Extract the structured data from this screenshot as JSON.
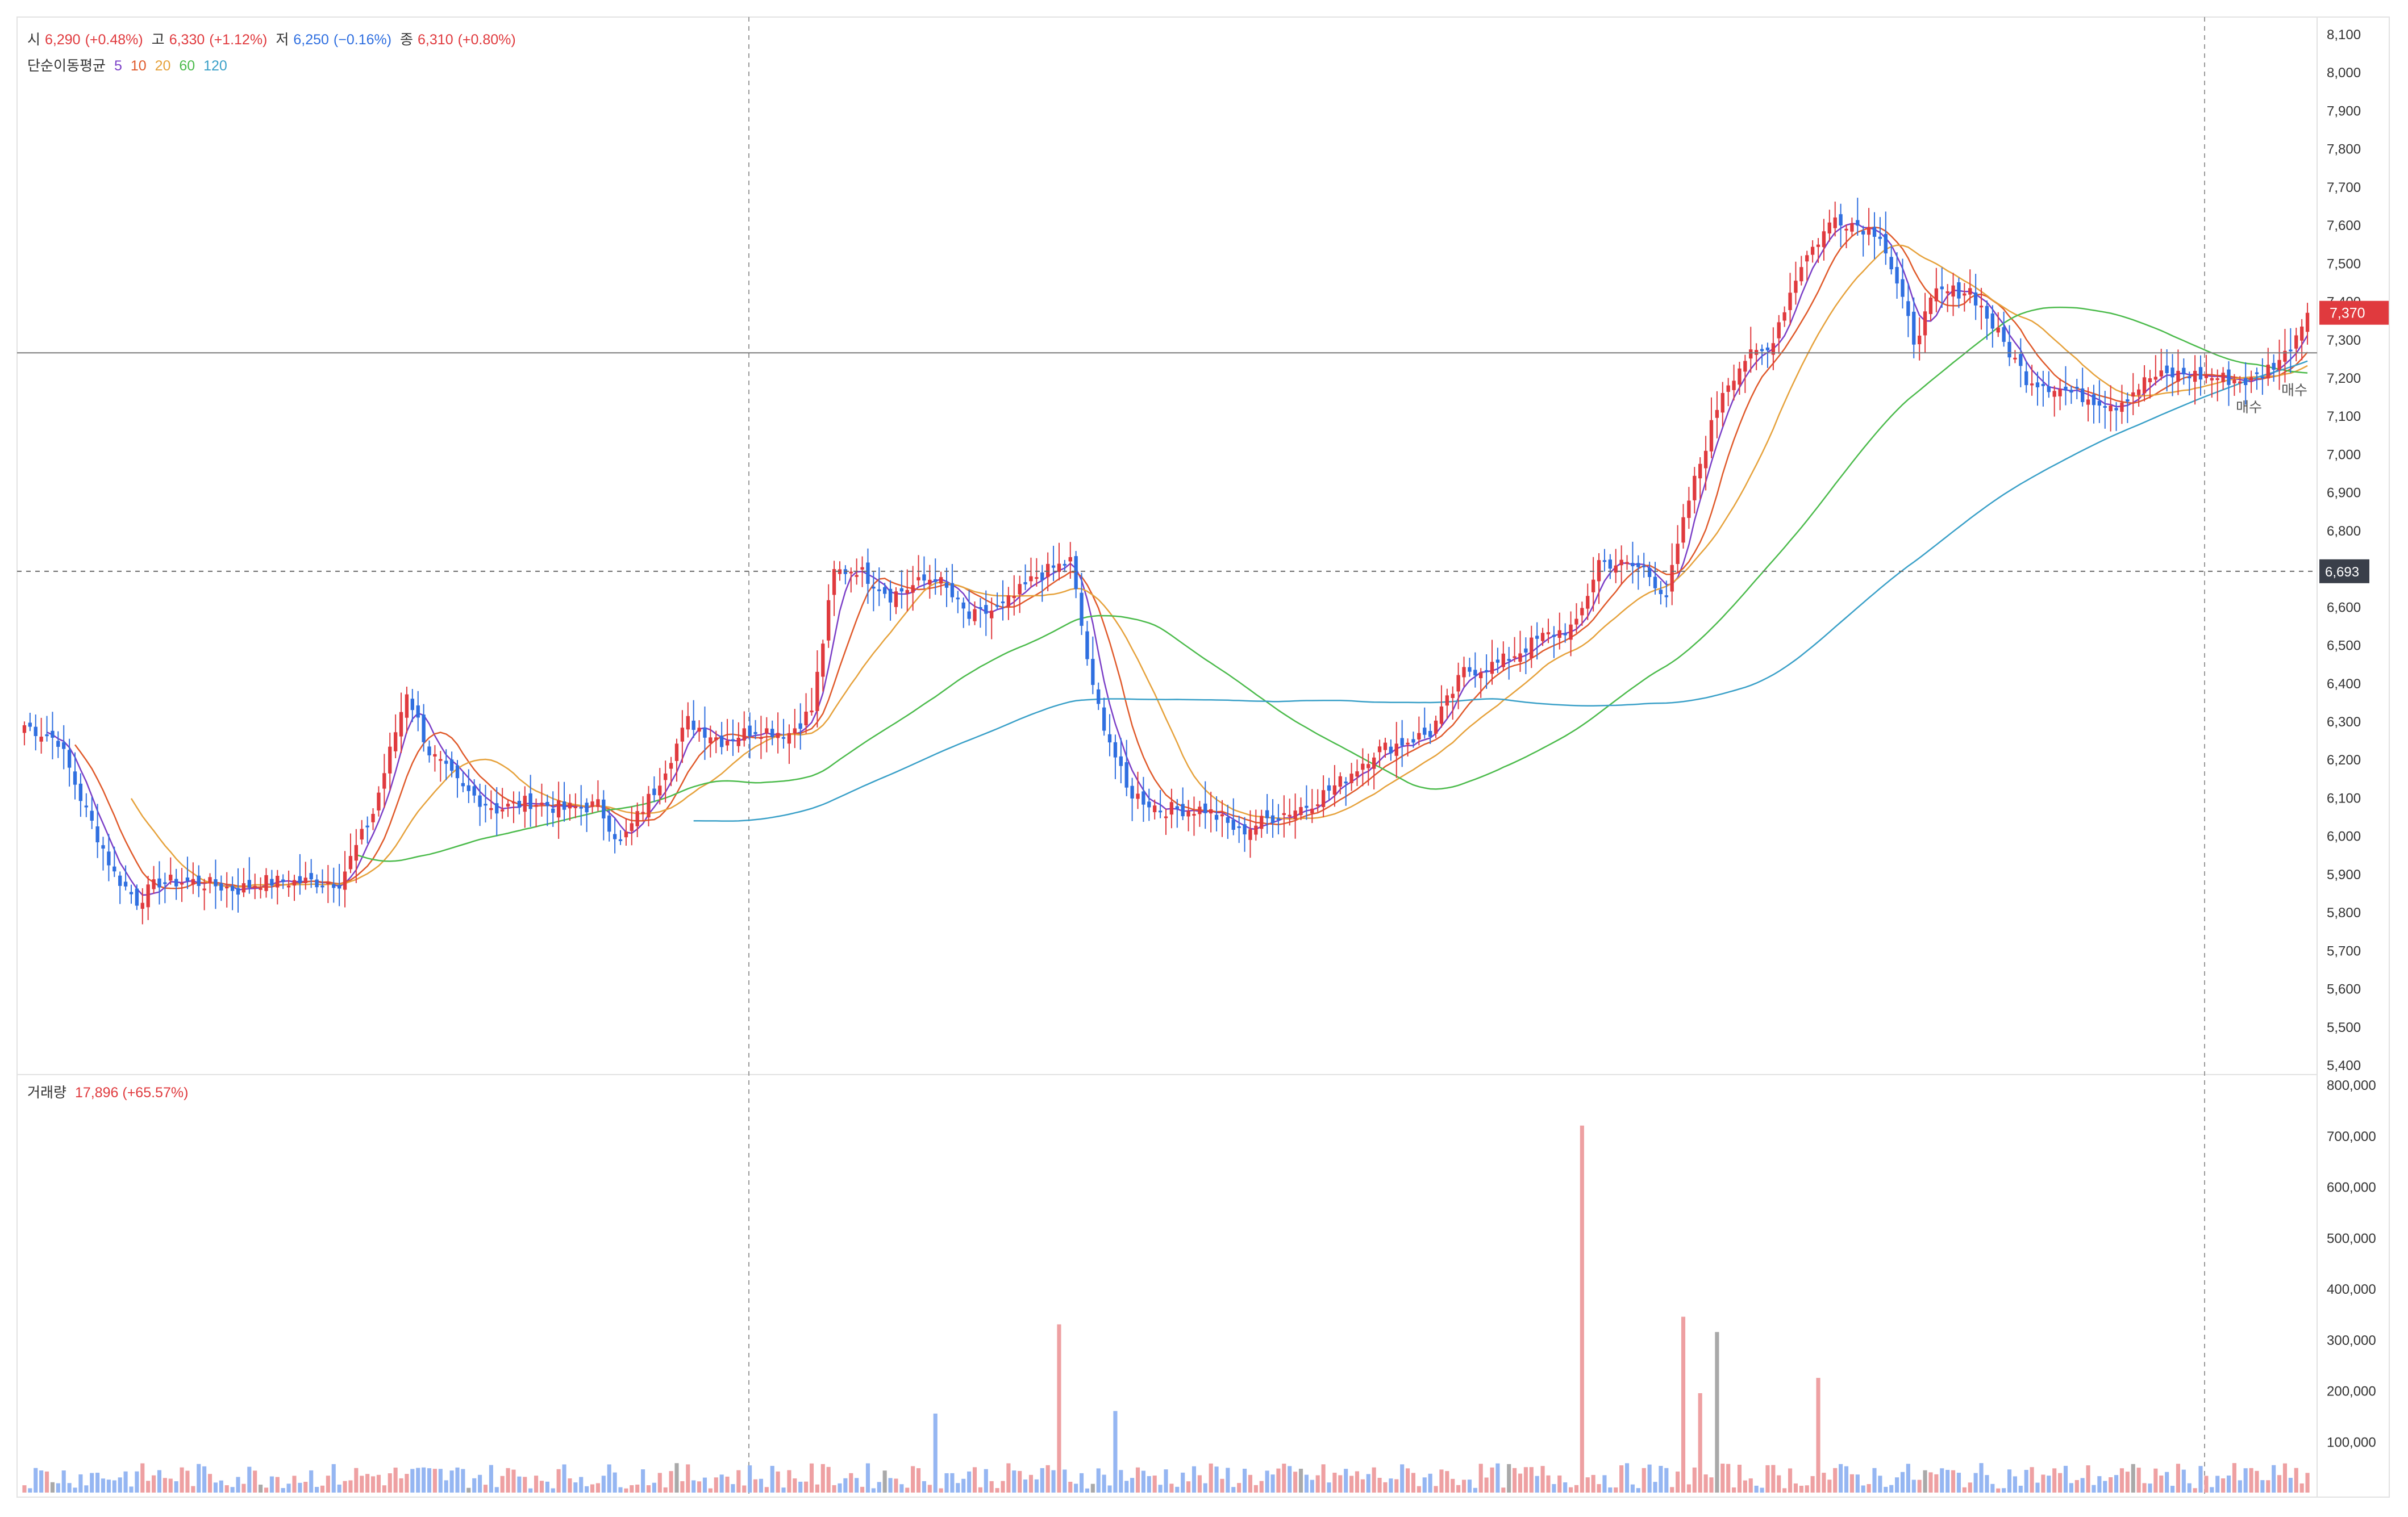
{
  "ohlc_legend": {
    "open_label": "시",
    "open_value": "6,290",
    "open_change": "(+0.48%)",
    "high_label": "고",
    "high_value": "6,330",
    "high_change": "(+1.12%)",
    "low_label": "저",
    "low_value": "6,250",
    "low_change": "(−0.16%)",
    "close_label": "종",
    "close_value": "6,310",
    "close_change": "(+0.80%)"
  },
  "ma_legend": {
    "label": "단순이동평균",
    "periods": [
      {
        "text": "5",
        "color": "#7b3fc7"
      },
      {
        "text": "10",
        "color": "#e05a2b"
      },
      {
        "text": "20",
        "color": "#e6a23c"
      },
      {
        "text": "60",
        "color": "#4cbb4c"
      },
      {
        "text": "120",
        "color": "#3aa0c8"
      }
    ]
  },
  "volume_legend": {
    "label": "거래량",
    "value": "17,896 (+65.57%)"
  },
  "colors": {
    "up": "#e03a3e",
    "down": "#2f6fe0",
    "up_volume": "#eea0a2",
    "down_volume": "#95b6f2",
    "flat_volume": "#a9a9a9",
    "price_tag": "#e03a3e",
    "crosshair_tag": "#3a3f4a"
  },
  "price_tag": "7,370",
  "crosshair_tag": "6,693",
  "markers": [
    {
      "text": "매수"
    },
    {
      "text": "매수"
    }
  ],
  "chart_data": [
    {
      "type": "candlestick",
      "title": "",
      "ylim": [
        5400,
        8100
      ],
      "yticks": [
        "5,400",
        "5,500",
        "5,600",
        "5,700",
        "5,800",
        "5,900",
        "6,000",
        "6,100",
        "6,200",
        "6,300",
        "6,400",
        "6,500",
        "6,600",
        "6,700",
        "6,800",
        "6,900",
        "7,000",
        "7,100",
        "7,200",
        "7,300",
        "7,400",
        "7,500",
        "7,600",
        "7,700",
        "7,800",
        "7,900",
        "8,000",
        "8,100"
      ],
      "close_anchors": [
        [
          0,
          6290
        ],
        [
          6,
          6250
        ],
        [
          10,
          6100
        ],
        [
          16,
          5900
        ],
        [
          20,
          5830
        ],
        [
          24,
          5880
        ],
        [
          30,
          5880
        ],
        [
          38,
          5860
        ],
        [
          42,
          5880
        ],
        [
          50,
          5880
        ],
        [
          56,
          5880
        ],
        [
          62,
          6060
        ],
        [
          68,
          6380
        ],
        [
          72,
          6220
        ],
        [
          78,
          6120
        ],
        [
          84,
          6070
        ],
        [
          90,
          6090
        ],
        [
          96,
          6070
        ],
        [
          102,
          6080
        ],
        [
          106,
          5980
        ],
        [
          112,
          6120
        ],
        [
          118,
          6300
        ],
        [
          124,
          6250
        ],
        [
          130,
          6280
        ],
        [
          136,
          6270
        ],
        [
          140,
          6330
        ],
        [
          144,
          6690
        ],
        [
          148,
          6700
        ],
        [
          154,
          6630
        ],
        [
          162,
          6680
        ],
        [
          168,
          6570
        ],
        [
          174,
          6600
        ],
        [
          180,
          6680
        ],
        [
          186,
          6720
        ],
        [
          190,
          6380
        ],
        [
          196,
          6120
        ],
        [
          202,
          6070
        ],
        [
          210,
          6070
        ],
        [
          216,
          6010
        ],
        [
          222,
          6050
        ],
        [
          228,
          6080
        ],
        [
          234,
          6140
        ],
        [
          240,
          6220
        ],
        [
          250,
          6270
        ],
        [
          256,
          6430
        ],
        [
          262,
          6450
        ],
        [
          270,
          6520
        ],
        [
          276,
          6550
        ],
        [
          280,
          6720
        ],
        [
          288,
          6700
        ],
        [
          292,
          6630
        ],
        [
          296,
          6880
        ],
        [
          302,
          7170
        ],
        [
          306,
          7250
        ],
        [
          310,
          7270
        ],
        [
          316,
          7500
        ],
        [
          322,
          7620
        ],
        [
          330,
          7580
        ],
        [
          336,
          7300
        ],
        [
          340,
          7420
        ],
        [
          346,
          7430
        ],
        [
          352,
          7290
        ],
        [
          356,
          7200
        ],
        [
          364,
          7160
        ],
        [
          372,
          7130
        ],
        [
          378,
          7200
        ],
        [
          384,
          7210
        ],
        [
          390,
          7200
        ],
        [
          396,
          7190
        ],
        [
          402,
          7260
        ],
        [
          406,
          7370
        ]
      ],
      "volume_ylim": [
        0,
        800000
      ],
      "volume_yticks": [
        "100,000",
        "200,000",
        "300,000",
        "400,000",
        "500,000",
        "600,000",
        "700,000",
        "800,000"
      ],
      "volume_spikes": [
        [
          184,
          330000
        ],
        [
          277,
          720000
        ],
        [
          295,
          345000
        ],
        [
          298,
          195000
        ],
        [
          301,
          315000
        ],
        [
          319,
          225000
        ],
        [
          162,
          155000
        ],
        [
          194,
          160000
        ]
      ]
    }
  ]
}
